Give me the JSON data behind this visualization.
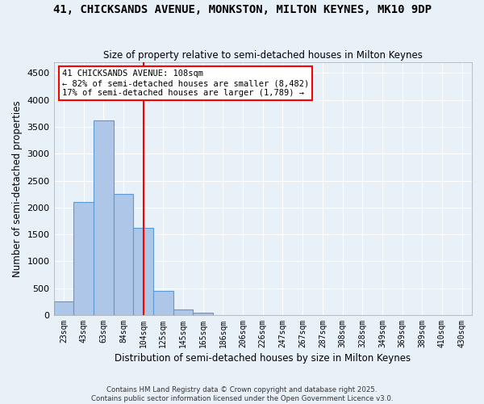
{
  "title1": "41, CHICKSANDS AVENUE, MONKSTON, MILTON KEYNES, MK10 9DP",
  "title2": "Size of property relative to semi-detached houses in Milton Keynes",
  "xlabel": "Distribution of semi-detached houses by size in Milton Keynes",
  "ylabel": "Number of semi-detached properties",
  "bin_labels": [
    "23sqm",
    "43sqm",
    "63sqm",
    "84sqm",
    "104sqm",
    "125sqm",
    "145sqm",
    "165sqm",
    "186sqm",
    "206sqm",
    "226sqm",
    "247sqm",
    "267sqm",
    "287sqm",
    "308sqm",
    "328sqm",
    "349sqm",
    "369sqm",
    "389sqm",
    "410sqm",
    "430sqm"
  ],
  "bar_values": [
    250,
    2100,
    3625,
    2250,
    1625,
    450,
    100,
    45,
    0,
    0,
    0,
    0,
    0,
    0,
    0,
    0,
    0,
    0,
    0,
    0,
    0
  ],
  "bar_color": "#aec6e8",
  "bar_edge_color": "#5b9bd5",
  "vline_x": 4,
  "annotation_title": "41 CHICKSANDS AVENUE: 108sqm",
  "annotation_line1": "← 82% of semi-detached houses are smaller (8,482)",
  "annotation_line2": "17% of semi-detached houses are larger (1,789) →",
  "background_color": "#e8f0f8",
  "grid_color": "white",
  "ylim": [
    0,
    4700
  ],
  "yticks": [
    0,
    500,
    1000,
    1500,
    2000,
    2500,
    3000,
    3500,
    4000,
    4500
  ],
  "footer_line1": "Contains HM Land Registry data © Crown copyright and database right 2025.",
  "footer_line2": "Contains public sector information licensed under the Open Government Licence v3.0."
}
